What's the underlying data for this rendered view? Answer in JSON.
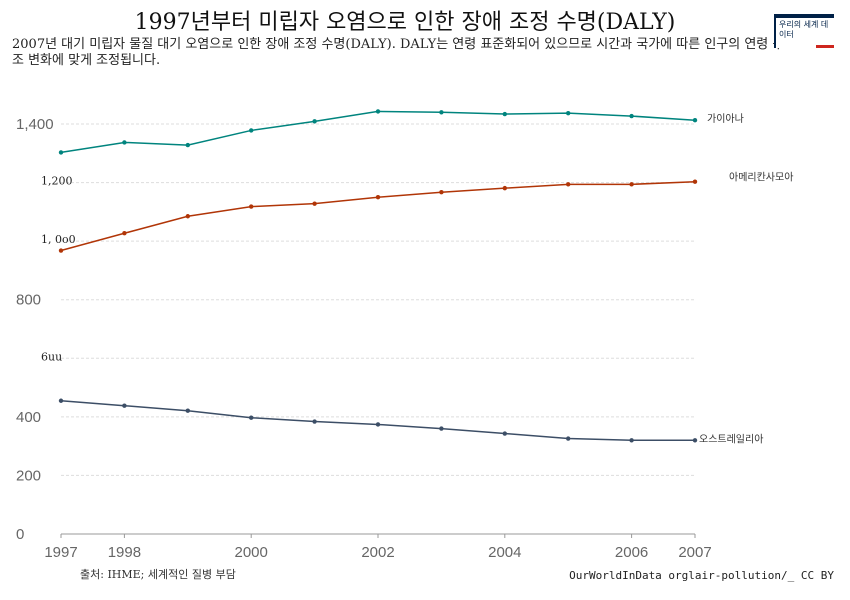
{
  "title": "1997년부터 미립자 오염으로 인한 장애 조정 수명(DALY)",
  "subtitle": "2007년 대기 미립자 물질 대기 오염으로 인한 장애 조정 수명(DALY). DALY는 연령 표준화되어 있으므로 시간과 국가에 따른 인구의 연령 구조 변화에 맞게 조정됩니다.",
  "logo_text": "우리의 세계 데이터",
  "source": "출처: IHME; 세계적인 질병 부담",
  "license": "OurWorldInData orglair-pollution/_ CC BY",
  "colors": {
    "guyana": "#00847e",
    "samoa": "#b13507",
    "australia": "#3c4e66",
    "grid": "#dddddd",
    "logo_red": "#ce261e",
    "logo_navy": "#002147"
  },
  "chart_data": {
    "type": "line",
    "title": "1997년부터 미립자 오염으로 인한 장애 조정 수명(DALY)",
    "xlabel": "",
    "ylabel": "",
    "x": [
      1997,
      1998,
      1999,
      2000,
      2001,
      2002,
      2003,
      2004,
      2005,
      2006,
      2007
    ],
    "xticks": [
      "1997",
      "1998",
      "2000",
      "2002",
      "2004",
      "2006",
      "2007"
    ],
    "yticks": [
      {
        "value": 0,
        "label": "0",
        "small": false
      },
      {
        "value": 200,
        "label": "200",
        "small": false
      },
      {
        "value": 400,
        "label": "400",
        "small": false
      },
      {
        "value": 600,
        "label": "6uu",
        "small": true
      },
      {
        "value": 800,
        "label": "800",
        "small": false
      },
      {
        "value": 1000,
        "label": "1,  0o0",
        "small": true
      },
      {
        "value": 1200,
        "label": "1,200",
        "small": true
      },
      {
        "value": 1400,
        "label": "1,400",
        "small": false
      }
    ],
    "ylim": [
      0,
      1400
    ],
    "grid": true,
    "series": [
      {
        "name": "가이아나",
        "color": "#00847e",
        "values": [
          1303,
          1337,
          1328,
          1378,
          1409,
          1443,
          1440,
          1434,
          1437,
          1427,
          1413
        ]
      },
      {
        "name": "아메리칸사모아",
        "color": "#b13507",
        "values": [
          968,
          1027,
          1085,
          1118,
          1128,
          1150,
          1167,
          1181,
          1194,
          1194,
          1203
        ]
      },
      {
        "name": "오스트레일리아",
        "color": "#3c4e66",
        "values": [
          455,
          438,
          421,
          397,
          384,
          374,
          360,
          343,
          326,
          320,
          320
        ]
      }
    ]
  }
}
